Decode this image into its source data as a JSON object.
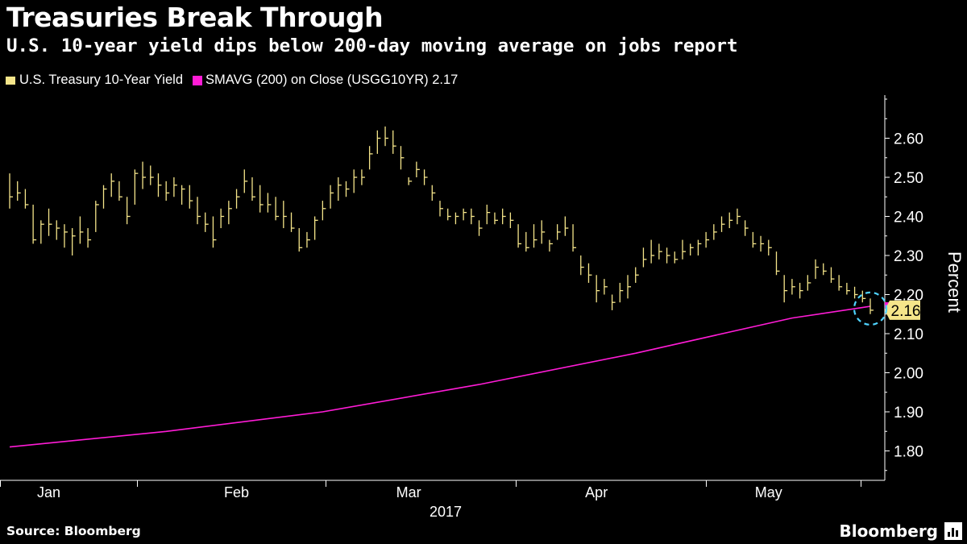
{
  "title": "Treasuries Break Through",
  "subtitle": "U.S. 10-year yield dips below 200-day moving average on jobs report",
  "legend": {
    "series1": "U.S. Treasury 10-Year Yield",
    "series2": "SMAVG (200) on Close (USGG10YR) 2.17"
  },
  "source": "Source: Bloomberg",
  "brand": "Bloomberg",
  "colors": {
    "bars": "#f5e58a",
    "sma": "#ff1cd6",
    "highlight": "#4fd3ff",
    "axis": "#ffffff",
    "label_bg": "#f5e58a"
  },
  "chart_data": {
    "type": "line",
    "title": "Treasuries Break Through",
    "subtitle": "U.S. 10-year yield dips below 200-day moving average on jobs report",
    "ylabel": "Percent",
    "xlabel": "2017",
    "ylim": [
      1.74,
      2.72
    ],
    "yticks": [
      "1.80",
      "1.90",
      "2.00",
      "2.10",
      "2.20",
      "2.30",
      "2.40",
      "2.50",
      "2.60"
    ],
    "x_range": [
      0,
      110
    ],
    "month_ticks": [
      5,
      29,
      51,
      75,
      97
    ],
    "month_labels": [
      "Jan",
      "Feb",
      "Mar",
      "Apr",
      "May"
    ],
    "year_label": "2017",
    "last_value_label": "2.16",
    "series": [
      {
        "name": "U.S. Treasury 10-Year Yield",
        "style": "ohlc",
        "values": [
          [
            2.51,
            2.42,
            2.45
          ],
          [
            2.49,
            2.44,
            2.46
          ],
          [
            2.47,
            2.42,
            2.43
          ],
          [
            2.43,
            2.33,
            2.34
          ],
          [
            2.39,
            2.33,
            2.38
          ],
          [
            2.42,
            2.35,
            2.38
          ],
          [
            2.39,
            2.34,
            2.37
          ],
          [
            2.38,
            2.32,
            2.36
          ],
          [
            2.37,
            2.3,
            2.35
          ],
          [
            2.4,
            2.33,
            2.36
          ],
          [
            2.37,
            2.32,
            2.34
          ],
          [
            2.44,
            2.36,
            2.43
          ],
          [
            2.48,
            2.42,
            2.47
          ],
          [
            2.51,
            2.45,
            2.49
          ],
          [
            2.49,
            2.44,
            2.45
          ],
          [
            2.45,
            2.38,
            2.4
          ],
          [
            2.52,
            2.43,
            2.51
          ],
          [
            2.54,
            2.47,
            2.5
          ],
          [
            2.53,
            2.48,
            2.5
          ],
          [
            2.51,
            2.45,
            2.48
          ],
          [
            2.49,
            2.44,
            2.46
          ],
          [
            2.5,
            2.45,
            2.48
          ],
          [
            2.48,
            2.43,
            2.47
          ],
          [
            2.48,
            2.42,
            2.44
          ],
          [
            2.45,
            2.38,
            2.4
          ],
          [
            2.41,
            2.36,
            2.38
          ],
          [
            2.4,
            2.32,
            2.34
          ],
          [
            2.42,
            2.37,
            2.4
          ],
          [
            2.44,
            2.38,
            2.42
          ],
          [
            2.47,
            2.42,
            2.45
          ],
          [
            2.52,
            2.46,
            2.49
          ],
          [
            2.5,
            2.44,
            2.45
          ],
          [
            2.48,
            2.41,
            2.43
          ],
          [
            2.46,
            2.41,
            2.43
          ],
          [
            2.45,
            2.39,
            2.4
          ],
          [
            2.44,
            2.37,
            2.4
          ],
          [
            2.41,
            2.36,
            2.37
          ],
          [
            2.37,
            2.31,
            2.32
          ],
          [
            2.36,
            2.32,
            2.34
          ],
          [
            2.4,
            2.34,
            2.39
          ],
          [
            2.44,
            2.39,
            2.42
          ],
          [
            2.48,
            2.42,
            2.46
          ],
          [
            2.5,
            2.44,
            2.48
          ],
          [
            2.49,
            2.45,
            2.47
          ],
          [
            2.52,
            2.46,
            2.5
          ],
          [
            2.52,
            2.48,
            2.5
          ],
          [
            2.58,
            2.52,
            2.56
          ],
          [
            2.62,
            2.56,
            2.6
          ],
          [
            2.63,
            2.58,
            2.6
          ],
          [
            2.62,
            2.56,
            2.58
          ],
          [
            2.58,
            2.52,
            2.55
          ],
          [
            2.5,
            2.48,
            2.49
          ],
          [
            2.54,
            2.5,
            2.52
          ],
          [
            2.52,
            2.48,
            2.5
          ],
          [
            2.48,
            2.44,
            2.46
          ],
          [
            2.44,
            2.4,
            2.42
          ],
          [
            2.42,
            2.39,
            2.4
          ],
          [
            2.41,
            2.38,
            2.4
          ],
          [
            2.42,
            2.39,
            2.41
          ],
          [
            2.42,
            2.38,
            2.4
          ],
          [
            2.39,
            2.35,
            2.37
          ],
          [
            2.43,
            2.38,
            2.41
          ],
          [
            2.41,
            2.38,
            2.39
          ],
          [
            2.42,
            2.38,
            2.4
          ],
          [
            2.41,
            2.37,
            2.39
          ],
          [
            2.38,
            2.32,
            2.33
          ],
          [
            2.36,
            2.31,
            2.32
          ],
          [
            2.38,
            2.32,
            2.34
          ],
          [
            2.39,
            2.33,
            2.36
          ],
          [
            2.34,
            2.31,
            2.33
          ],
          [
            2.38,
            2.34,
            2.36
          ],
          [
            2.4,
            2.35,
            2.37
          ],
          [
            2.38,
            2.31,
            2.32
          ],
          [
            2.3,
            2.25,
            2.27
          ],
          [
            2.28,
            2.23,
            2.25
          ],
          [
            2.25,
            2.18,
            2.21
          ],
          [
            2.24,
            2.2,
            2.22
          ],
          [
            2.2,
            2.16,
            2.18
          ],
          [
            2.23,
            2.18,
            2.21
          ],
          [
            2.25,
            2.19,
            2.22
          ],
          [
            2.27,
            2.23,
            2.25
          ],
          [
            2.32,
            2.27,
            2.29
          ],
          [
            2.34,
            2.28,
            2.3
          ],
          [
            2.33,
            2.29,
            2.31
          ],
          [
            2.32,
            2.28,
            2.3
          ],
          [
            2.31,
            2.28,
            2.29
          ],
          [
            2.34,
            2.29,
            2.31
          ],
          [
            2.33,
            2.3,
            2.32
          ],
          [
            2.34,
            2.3,
            2.33
          ],
          [
            2.36,
            2.32,
            2.34
          ],
          [
            2.38,
            2.34,
            2.36
          ],
          [
            2.4,
            2.36,
            2.38
          ],
          [
            2.41,
            2.37,
            2.39
          ],
          [
            2.42,
            2.38,
            2.4
          ],
          [
            2.39,
            2.35,
            2.37
          ],
          [
            2.36,
            2.32,
            2.33
          ],
          [
            2.35,
            2.31,
            2.33
          ],
          [
            2.34,
            2.3,
            2.32
          ],
          [
            2.31,
            2.25,
            2.26
          ],
          [
            2.25,
            2.18,
            2.21
          ],
          [
            2.24,
            2.2,
            2.22
          ],
          [
            2.23,
            2.19,
            2.21
          ],
          [
            2.25,
            2.21,
            2.23
          ],
          [
            2.29,
            2.24,
            2.27
          ],
          [
            2.28,
            2.25,
            2.26
          ],
          [
            2.27,
            2.23,
            2.24
          ],
          [
            2.25,
            2.21,
            2.22
          ],
          [
            2.23,
            2.2,
            2.21
          ],
          [
            2.22,
            2.19,
            2.2
          ],
          [
            2.21,
            2.18,
            2.19
          ],
          [
            2.19,
            2.15,
            2.16
          ]
        ]
      },
      {
        "name": "SMAVG (200) on Close (USGG10YR)",
        "style": "line",
        "points": [
          [
            0,
            1.81
          ],
          [
            20,
            1.85
          ],
          [
            40,
            1.9
          ],
          [
            60,
            1.97
          ],
          [
            80,
            2.05
          ],
          [
            100,
            2.14
          ],
          [
            110,
            2.17
          ]
        ]
      }
    ]
  }
}
